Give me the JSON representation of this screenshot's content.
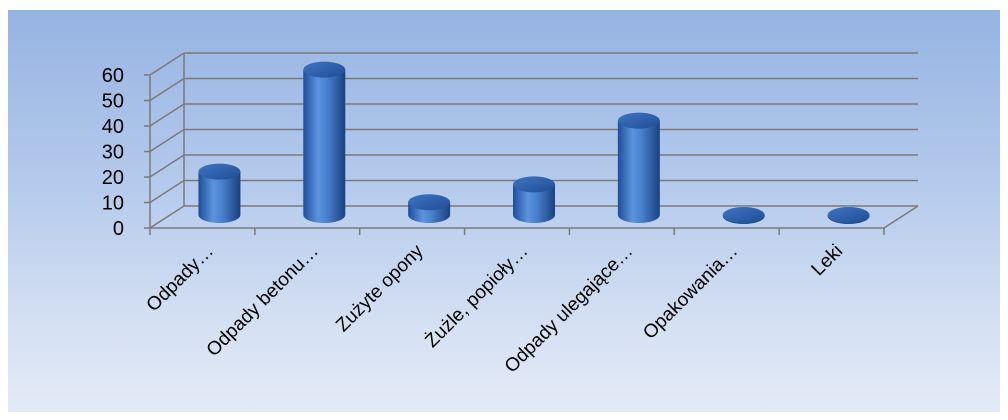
{
  "chart_data": {
    "type": "bar",
    "style": "3d-cylinder",
    "categories": [
      "Odpady…",
      "Odpady betonu…",
      "Zużyte opony",
      "Żużle, popioły…",
      "Odpady ulegające…",
      "Opakowania…",
      "Leki"
    ],
    "values": [
      17,
      57,
      5,
      12,
      37,
      0,
      0
    ],
    "ylim": [
      0,
      60
    ],
    "yticks": [
      "0",
      "10",
      "20",
      "30",
      "40",
      "50",
      "60"
    ],
    "grid": true,
    "bar_color": "#3a6fc0",
    "background_gradient": [
      "#95b3e2",
      "#e3eaf6"
    ]
  }
}
